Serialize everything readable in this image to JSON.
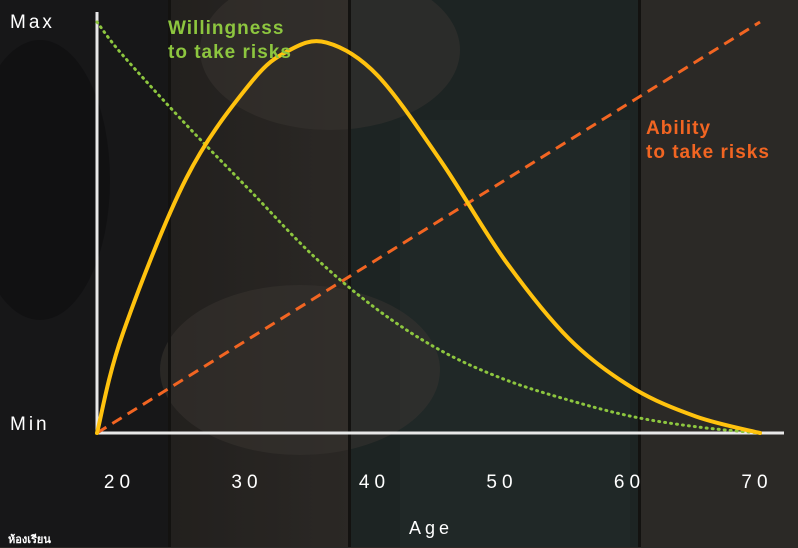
{
  "chart_data": {
    "type": "line",
    "xlabel": "Age",
    "ylabel": "",
    "xlim": [
      15,
      75
    ],
    "ylim": [
      0,
      1
    ],
    "x_ticks": [
      20,
      30,
      40,
      50,
      60,
      70
    ],
    "y_ticks": [
      {
        "value": 0,
        "label": "Min"
      },
      {
        "value": 1,
        "label": "Max"
      }
    ],
    "series": [
      {
        "name": "Willingness to take risks",
        "label_lines": [
          "Willingness",
          "to take risks"
        ],
        "color": "#8dc63f",
        "style": "dotted",
        "x": [
          18,
          20,
          25,
          30,
          35,
          40,
          45,
          50,
          55,
          60,
          65,
          70
        ],
        "y": [
          1.0,
          0.92,
          0.75,
          0.59,
          0.43,
          0.3,
          0.2,
          0.13,
          0.08,
          0.04,
          0.015,
          0.0
        ]
      },
      {
        "name": "Ability to take risks",
        "label_lines": [
          "Ability",
          "to take risks"
        ],
        "color": "#f26522",
        "style": "dashed",
        "x": [
          18,
          70
        ],
        "y": [
          0.0,
          1.0
        ]
      },
      {
        "name": "",
        "color": "#ffc20e",
        "style": "solid",
        "x": [
          18,
          20,
          25,
          30,
          33,
          36,
          40,
          45,
          50,
          55,
          60,
          65,
          70
        ],
        "y": [
          0.0,
          0.24,
          0.62,
          0.85,
          0.93,
          0.95,
          0.87,
          0.66,
          0.42,
          0.23,
          0.11,
          0.04,
          0.0
        ]
      }
    ]
  },
  "watermark": "ห้องเรียน"
}
